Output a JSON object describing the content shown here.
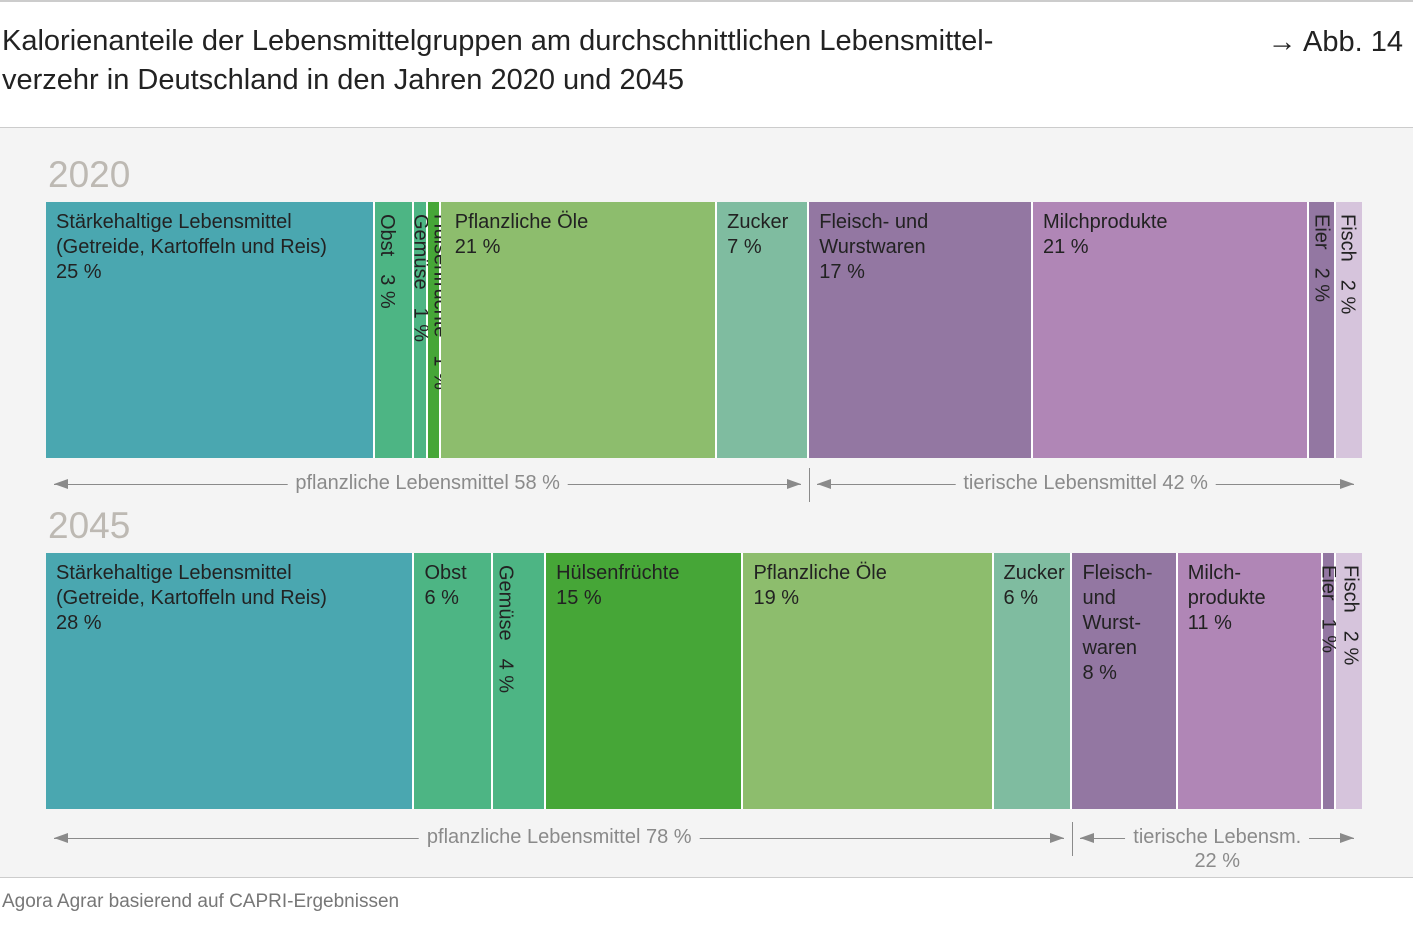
{
  "title": "Kalorienanteile der Lebensmittelgruppen am durchschnittlichen Lebensmittel-\nverzehr in Deutschland in den Jahren 2020 und 2045",
  "figure_ref": "→ Abb. 14",
  "source": "Agora Agrar basierend auf CAPRI-Ergebnissen",
  "chart_data": {
    "type": "bar",
    "stacked": true,
    "orientation": "horizontal",
    "unit": "%",
    "panels": [
      {
        "year": "2020",
        "segments": [
          {
            "name": "Stärkehaltige Lebensmittel\n(Getreide, Kartoffeln und Reis)",
            "value": 25,
            "label": "25 %",
            "color": "#4aa7b0",
            "vertical": false
          },
          {
            "name": "Obst",
            "value": 3,
            "label": "3 %",
            "color": "#4db584",
            "vertical": true
          },
          {
            "name": "Gemüse",
            "value": 1,
            "label": "1 %",
            "color": "#4db584",
            "vertical": true
          },
          {
            "name": "Hülsenfrüchte",
            "value": 1,
            "label": "1 %",
            "color": "#46a637",
            "vertical": true
          },
          {
            "name": "Pflanzliche Öle",
            "value": 21,
            "label": "21 %",
            "color": "#8dbd6d",
            "vertical": false
          },
          {
            "name": "Zucker",
            "value": 7,
            "label": "7 %",
            "color": "#7fbca0",
            "vertical": false
          },
          {
            "name": "Fleisch- und\nWurstwaren",
            "value": 17,
            "label": "17 %",
            "color": "#9377a2",
            "vertical": false
          },
          {
            "name": "Milchprodukte",
            "value": 21,
            "label": "21 %",
            "color": "#b086b6",
            "vertical": false
          },
          {
            "name": "Eier",
            "value": 2,
            "label": "2 %",
            "color": "#9377a2",
            "vertical": true
          },
          {
            "name": "Fisch",
            "value": 2,
            "label": "2 %",
            "color": "#d6c4dc",
            "vertical": true
          }
        ],
        "groups": [
          {
            "label": "pflanzliche Lebensmittel 58 %",
            "value": 58
          },
          {
            "label": "tierische Lebensmittel 42 %",
            "value": 42
          }
        ]
      },
      {
        "year": "2045",
        "segments": [
          {
            "name": "Stärkehaltige Lebensmittel\n(Getreide, Kartoffeln und Reis)",
            "value": 28,
            "label": "28 %",
            "color": "#4aa7b0",
            "vertical": false
          },
          {
            "name": "Obst",
            "value": 6,
            "label": "6 %",
            "color": "#4db584",
            "vertical": false
          },
          {
            "name": "Gemüse",
            "value": 4,
            "label": "4 %",
            "color": "#4db584",
            "vertical": true
          },
          {
            "name": "Hülsenfrüchte",
            "value": 15,
            "label": "15 %",
            "color": "#46a637",
            "vertical": false
          },
          {
            "name": "Pflanzliche Öle",
            "value": 19,
            "label": "19 %",
            "color": "#8dbd6d",
            "vertical": false
          },
          {
            "name": "Zucker",
            "value": 6,
            "label": "6 %",
            "color": "#7fbca0",
            "vertical": false
          },
          {
            "name": "Fleisch-\nund\nWurst-\nwaren",
            "value": 8,
            "label": "8 %",
            "color": "#9377a2",
            "vertical": false
          },
          {
            "name": "Milch-\nprodukte",
            "value": 11,
            "label": "11 %",
            "color": "#b086b6",
            "vertical": false
          },
          {
            "name": "Eier",
            "value": 1,
            "label": "1 %",
            "color": "#9377a2",
            "vertical": true
          },
          {
            "name": "Fisch",
            "value": 2,
            "label": "2 %",
            "color": "#d6c4dc",
            "vertical": true
          }
        ],
        "groups": [
          {
            "label": "pflanzliche Lebensmittel 78 %",
            "value": 78
          },
          {
            "label": "tierische Lebensm.\n22 %",
            "value": 22
          }
        ]
      }
    ]
  }
}
